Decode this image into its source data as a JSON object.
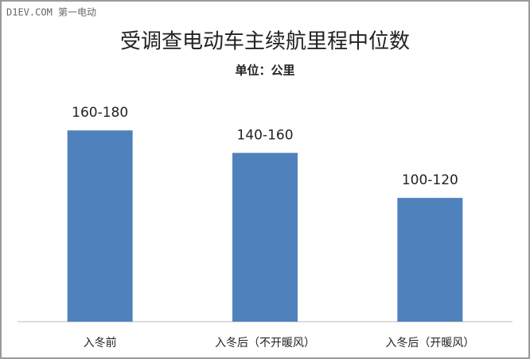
{
  "watermark": "D1EV.COM 第一电动",
  "chart_data": {
    "type": "bar",
    "title": "受调查电动车主续航里程中位数",
    "subtitle": "单位：公里",
    "categories": [
      "入冬前",
      "入冬后（不开暖风）",
      "入冬后（开暖风）"
    ],
    "values": [
      170,
      150,
      110
    ],
    "value_labels": [
      "160-180",
      "140-160",
      "100-120"
    ],
    "color": "#4f81bd",
    "ylim": [
      0,
      240
    ]
  }
}
